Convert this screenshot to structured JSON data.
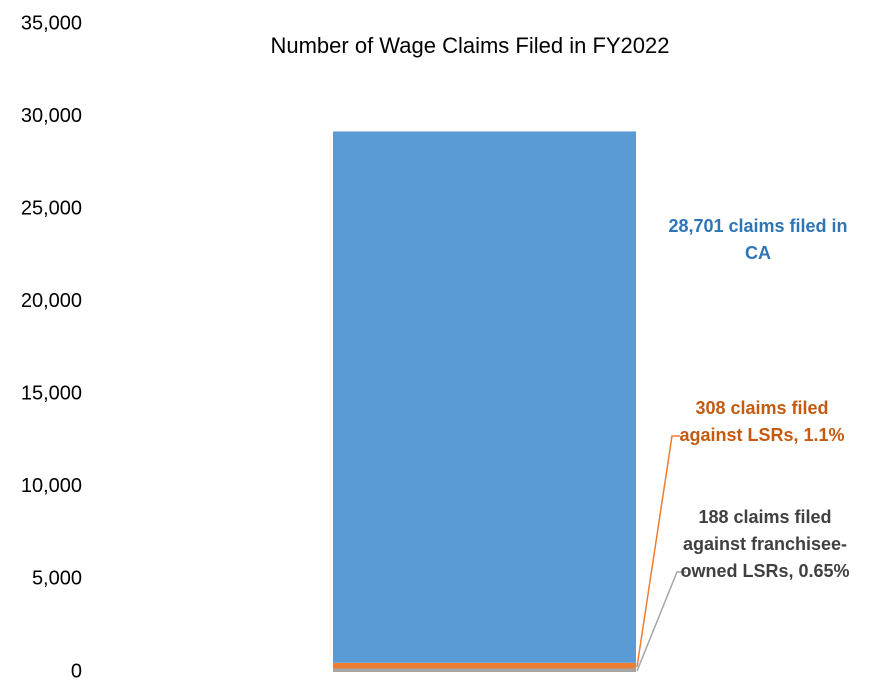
{
  "chart_data": {
    "type": "stacked-bar",
    "title": "Number of Wage Claims Filed in FY2022",
    "categories": [
      null
    ],
    "series": [
      {
        "color": "#a5a5a5",
        "label_color": "#404040",
        "values": [
          188
        ],
        "value_labels": [
          "188 claims filed against franchisee-owned LSRs, 0.65%"
        ]
      },
      {
        "color": "#ed7d31",
        "label_color": "#c55a11",
        "values": [
          308
        ],
        "value_labels": [
          "308 claims filed against LSRs, 1.1%"
        ]
      },
      {
        "color": "#5b9bd5",
        "label_color": "#2e75b6",
        "values": [
          28701
        ],
        "value_labels": [
          "28,701 claims filed in CA"
        ]
      }
    ],
    "ylim": [
      0,
      35000
    ],
    "yticks": [
      0,
      {
        "value": 5000,
        "label": "5,000"
      },
      {
        "value": 10000,
        "label": "10,000"
      },
      {
        "value": 15000,
        "label": "15,000"
      },
      {
        "value": 20000,
        "label": "20,000"
      },
      {
        "value": 25000,
        "label": "25,000"
      },
      {
        "value": 30000,
        "label": "30,000"
      },
      {
        "value": 35000,
        "label": "35,000"
      }
    ],
    "grid": false
  }
}
